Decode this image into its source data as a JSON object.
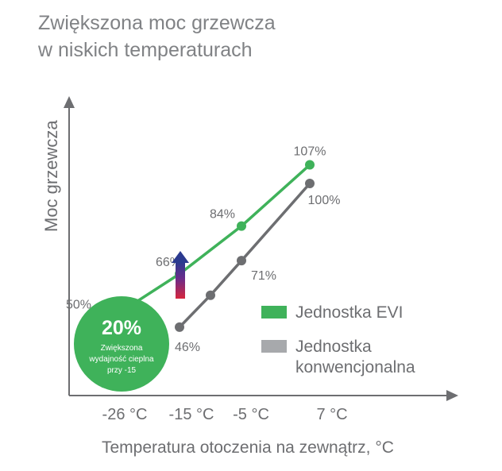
{
  "title": [
    "Zwiększona moc grzewcza",
    "w niskich temperaturach"
  ],
  "chart_data": {
    "type": "line",
    "title": "Zwiększona moc grzewcza w niskich temperaturach",
    "xlabel": "Temperatura otoczenia na zewnątrz, °C",
    "ylabel": "Moc grzewcza",
    "x": [
      -26,
      -20,
      -15,
      -10,
      -5,
      7
    ],
    "x_tick_labels": [
      "-26 °C",
      "-15 °C",
      "-5 °C",
      "7 °C"
    ],
    "series": [
      {
        "name": "Jednostka EVI",
        "color": "#3fb25a",
        "points": [
          {
            "x": -26,
            "y": 50,
            "label": "50%"
          },
          {
            "x": -15,
            "y": 66,
            "label": "66%"
          },
          {
            "x": -5,
            "y": 84,
            "label": "84%"
          },
          {
            "x": 7,
            "y": 107,
            "label": "107%"
          }
        ]
      },
      {
        "name": "Jednostka konwencjonalna",
        "color": "#6d6e71",
        "points": [
          {
            "x": -15,
            "y": 46,
            "label": "46%"
          },
          {
            "x": -10,
            "y": 58,
            "label": ""
          },
          {
            "x": -5,
            "y": 71,
            "label": "71%"
          },
          {
            "x": 7,
            "y": 100,
            "label": "100%"
          }
        ]
      }
    ],
    "legend": [
      {
        "label": "Jednostka EVI",
        "color": "#3fb25a"
      },
      {
        "label": "Jednostka konwencjonalna",
        "color": "#a7a9ac"
      }
    ],
    "legend_placement": "bottom-right",
    "grid": false,
    "annotation": {
      "value": "20%",
      "text": [
        "Zwiększona",
        "wydajność cieplna",
        "przy -15"
      ],
      "color": "#3fb25a"
    }
  }
}
